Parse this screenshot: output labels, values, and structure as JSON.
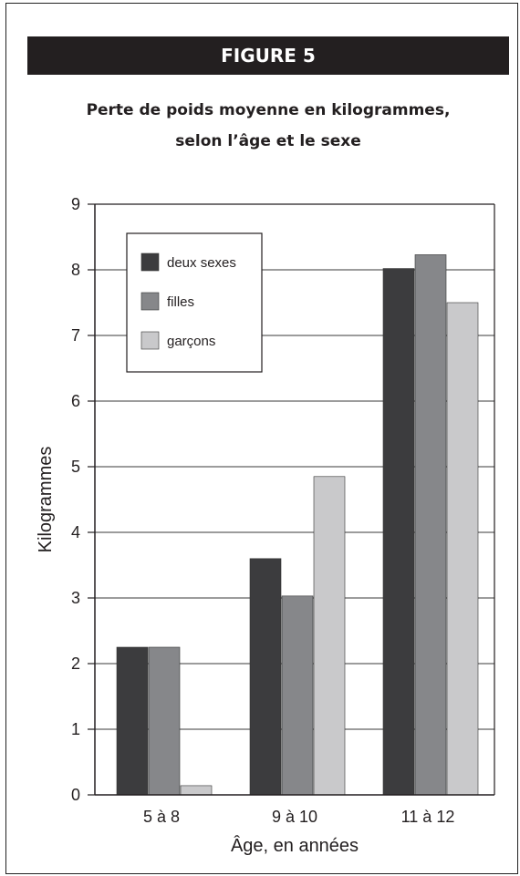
{
  "figure_label": "FIGURE 5",
  "chart_data": {
    "type": "bar",
    "title_lines": [
      "Perte de poids moyenne en kilogrammes,",
      "selon l’âge et le sexe"
    ],
    "xlabel": "Âge, en années",
    "ylabel": "Kilogrammes",
    "categories": [
      "5 à 8",
      "9 à 10",
      "11 à 12"
    ],
    "series": [
      {
        "name": "deux sexes",
        "color": "#3c3c3e",
        "values": [
          2.25,
          3.6,
          8.02
        ]
      },
      {
        "name": "filles",
        "color": "#86878a",
        "values": [
          2.25,
          3.03,
          8.23
        ]
      },
      {
        "name": "garçons",
        "color": "#c9c9cb",
        "values": [
          0.14,
          4.85,
          7.5
        ]
      }
    ],
    "ylim": [
      0,
      9
    ],
    "yticks": [
      "0",
      "1",
      "2",
      "3",
      "4",
      "5",
      "6",
      "7",
      "8",
      "9"
    ],
    "grid": true,
    "legend_position": "top-left"
  }
}
